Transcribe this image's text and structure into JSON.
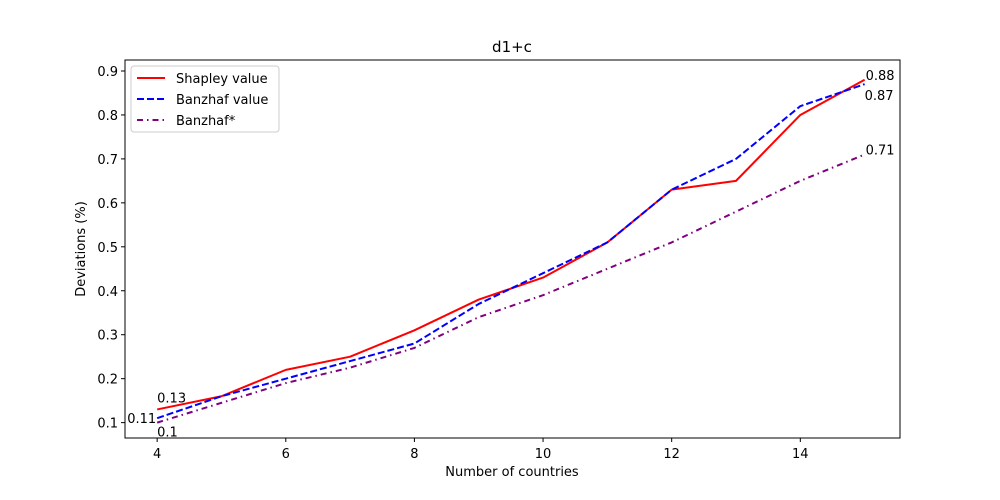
{
  "chart_data": {
    "type": "line",
    "title": "d1+c",
    "xlabel": "Number of countries",
    "ylabel": "Deviations (%)",
    "xlim": [
      3.5,
      15.55
    ],
    "ylim": [
      0.065,
      0.925
    ],
    "xticks": [
      4,
      6,
      8,
      10,
      12,
      14
    ],
    "yticks": [
      0.1,
      0.2,
      0.3,
      0.4,
      0.5,
      0.6,
      0.7,
      0.8,
      0.9
    ],
    "grid": false,
    "legend_position": "top-left",
    "x": [
      4,
      5,
      6,
      7,
      8,
      9,
      10,
      11,
      12,
      13,
      14,
      15
    ],
    "series": [
      {
        "name": "Shapley value",
        "color": "#ff0000",
        "style": "solid",
        "values": [
          0.13,
          0.16,
          0.22,
          0.25,
          0.31,
          0.38,
          0.43,
          0.51,
          0.63,
          0.65,
          0.8,
          0.88
        ]
      },
      {
        "name": "Banzhaf value",
        "color": "#0000ff",
        "style": "dashed",
        "values": [
          0.11,
          0.16,
          0.2,
          0.24,
          0.28,
          0.37,
          0.44,
          0.51,
          0.63,
          0.7,
          0.82,
          0.87
        ]
      },
      {
        "name": "Banzhaf*",
        "color": "#800080",
        "style": "dashdot",
        "values": [
          0.1,
          0.145,
          0.19,
          0.225,
          0.27,
          0.34,
          0.39,
          0.45,
          0.51,
          0.58,
          0.65,
          0.71
        ]
      }
    ],
    "annotations": [
      {
        "text": "0.13",
        "x": 4,
        "y": 0.13
      },
      {
        "text": "0.11",
        "x": 4,
        "y": 0.11
      },
      {
        "text": "0.1",
        "x": 4,
        "y": 0.1
      },
      {
        "text": "0.88",
        "x": 15,
        "y": 0.88
      },
      {
        "text": "0.87",
        "x": 15,
        "y": 0.87
      },
      {
        "text": "0.71",
        "x": 15,
        "y": 0.71
      }
    ]
  }
}
